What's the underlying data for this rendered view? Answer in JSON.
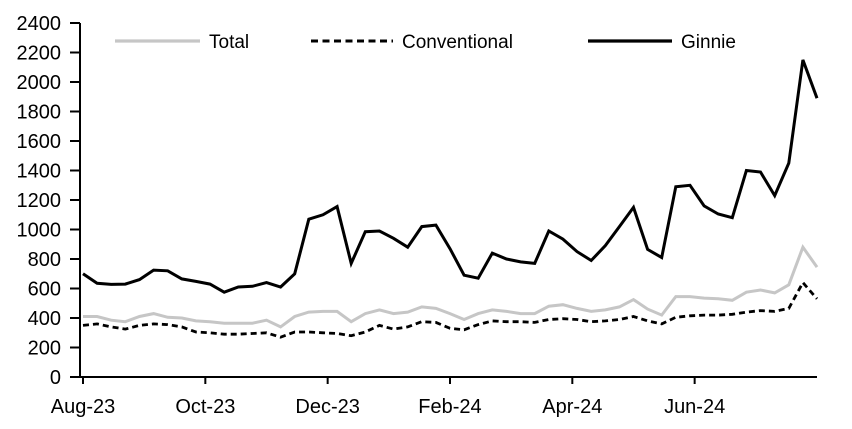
{
  "chart": {
    "title": "",
    "legend": [
      {
        "label": "Total",
        "color": "#c6c6c6",
        "style": "solid"
      },
      {
        "label": "Conventional",
        "color": "#000000",
        "style": "dashed"
      },
      {
        "label": "Ginnie",
        "color": "#000000",
        "style": "solid"
      }
    ]
  },
  "chart_data": {
    "type": "line",
    "title": "",
    "xlabel": "",
    "ylabel": "",
    "x_description": "weekly observations from Aug-2023 through Aug-2024",
    "x_tick_labels": [
      "Aug-23",
      "Oct-23",
      "Dec-23",
      "Feb-24",
      "Apr-24",
      "Jun-24"
    ],
    "y_ticks": [
      0,
      200,
      400,
      600,
      800,
      1000,
      1200,
      1400,
      1600,
      1800,
      2000,
      2200,
      2400
    ],
    "ylim": [
      0,
      2400
    ],
    "grid": false,
    "legend_position": "top",
    "series": [
      {
        "name": "Total",
        "color": "#c6c6c6",
        "dashed": false,
        "values": [
          410,
          410,
          385,
          375,
          410,
          430,
          405,
          400,
          380,
          375,
          365,
          365,
          365,
          385,
          340,
          410,
          440,
          445,
          445,
          375,
          430,
          455,
          430,
          440,
          475,
          465,
          430,
          390,
          430,
          455,
          445,
          430,
          430,
          480,
          490,
          465,
          445,
          455,
          475,
          525,
          460,
          420,
          545,
          545,
          535,
          530,
          520,
          575,
          590,
          570,
          625,
          880,
          745
        ]
      },
      {
        "name": "Conventional",
        "color": "#000000",
        "dashed": true,
        "values": [
          350,
          360,
          340,
          325,
          350,
          360,
          355,
          340,
          305,
          300,
          290,
          290,
          295,
          300,
          270,
          305,
          305,
          300,
          295,
          280,
          305,
          350,
          325,
          340,
          375,
          370,
          330,
          320,
          355,
          380,
          375,
          375,
          370,
          390,
          395,
          390,
          375,
          380,
          390,
          410,
          380,
          360,
          405,
          415,
          420,
          420,
          425,
          440,
          450,
          445,
          465,
          640,
          530
        ]
      },
      {
        "name": "Ginnie",
        "color": "#000000",
        "dashed": false,
        "values": [
          700,
          635,
          628,
          630,
          660,
          725,
          720,
          665,
          648,
          630,
          575,
          610,
          615,
          640,
          610,
          700,
          1070,
          1100,
          1155,
          770,
          985,
          990,
          940,
          880,
          1020,
          1030,
          870,
          690,
          670,
          840,
          800,
          780,
          770,
          990,
          935,
          850,
          790,
          890,
          1020,
          1150,
          865,
          810,
          1290,
          1300,
          1160,
          1105,
          1080,
          1400,
          1390,
          1230,
          1450,
          2150,
          1890
        ]
      }
    ]
  }
}
